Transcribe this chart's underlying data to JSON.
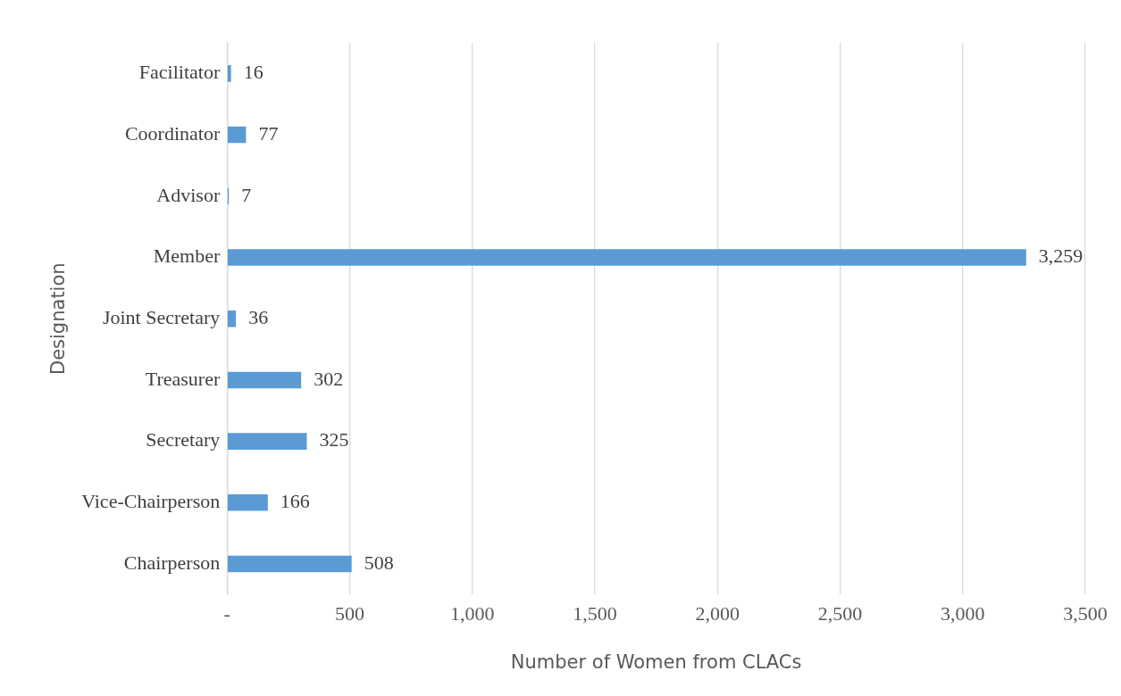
{
  "chart_data": {
    "type": "bar",
    "orientation": "horizontal",
    "xlabel": "Number of Women from CLACs",
    "ylabel": "Designation",
    "categories": [
      "Facilitator",
      "Coordinator",
      "Advisor",
      "Member",
      "Joint Secretary",
      "Treasurer",
      "Secretary",
      "Vice-Chairperson",
      "Chairperson"
    ],
    "values": [
      16,
      77,
      7,
      3259,
      36,
      302,
      325,
      166,
      508
    ],
    "value_labels": [
      "16",
      "77",
      "7",
      "3,259",
      "36",
      "302",
      "325",
      "166",
      "508"
    ],
    "color": "#5b9bd5",
    "xlim": [
      0,
      3500
    ],
    "xticks": [
      {
        "value": 0,
        "label": "-"
      },
      500,
      {
        "value": 1000,
        "label": "1,000"
      },
      {
        "value": 1500,
        "label": "1,500"
      },
      {
        "value": 2000,
        "label": "2,000"
      },
      {
        "value": 2500,
        "label": "2,500"
      },
      {
        "value": 3000,
        "label": "3,000"
      },
      {
        "value": 3500,
        "label": "3,500"
      }
    ],
    "grid": "x",
    "legend": false
  }
}
